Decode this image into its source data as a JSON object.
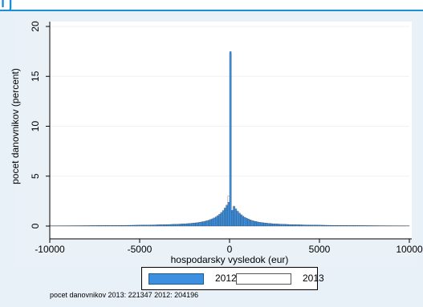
{
  "chart_data": {
    "type": "bar",
    "title": "",
    "xlabel": "hospodarsky vysledok (eur)",
    "ylabel": "pocet danovnikov (percent)",
    "xlim": [
      -10000,
      10000
    ],
    "ylim": [
      0,
      20
    ],
    "xticks": [
      -10000,
      -5000,
      0,
      5000,
      10000
    ],
    "yticks": [
      0,
      5,
      10,
      15,
      20
    ],
    "bin_width_eur": 100,
    "series": [
      {
        "name": "2012",
        "fill": "#3d8fe0",
        "peaks": [
          {
            "x": 0,
            "value": 17.5
          },
          {
            "x": -100,
            "value": 2.4
          },
          {
            "x": 100,
            "value": 1.6
          }
        ]
      },
      {
        "name": "2013",
        "fill": "#ffffff",
        "peaks": [
          {
            "x": 0,
            "value": 17.3
          },
          {
            "x": -100,
            "value": 3.0
          },
          {
            "x": 100,
            "value": 1.4
          }
        ]
      }
    ],
    "grid": "horizontal",
    "legend_position": "bottom-center"
  },
  "legend": {
    "label_2012": "2012",
    "label_2013": "2013"
  },
  "footnote": "pocet danovnikov 2013: 221347   2012: 204196",
  "colors": {
    "accent": "#1a8fd6",
    "bar_2012": "#3d8fe0",
    "panel_bg": "#e9f1f8"
  }
}
